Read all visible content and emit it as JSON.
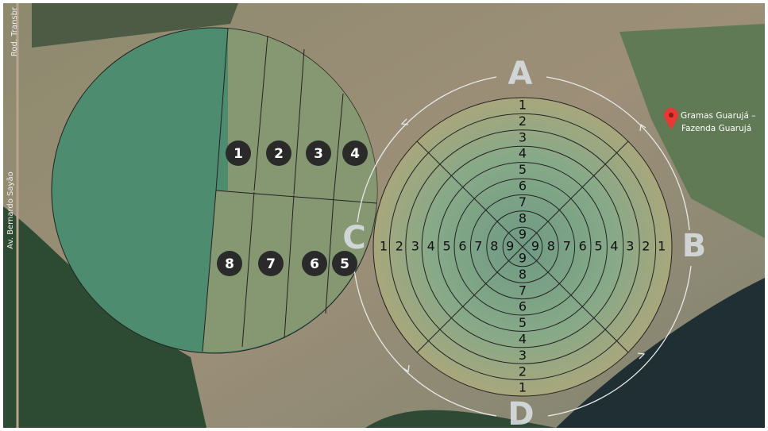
{
  "roads": [
    "Rod. Transbr",
    "Av. Bernardo Sayão"
  ],
  "place": {
    "name_lines": [
      "Gramas Guarujá –",
      "Fazenda Guarujá"
    ]
  },
  "directions": [
    "A",
    "B",
    "C",
    "D"
  ],
  "left_pivot": {
    "plots": [
      "1",
      "2",
      "3",
      "4",
      "5",
      "6",
      "7",
      "8"
    ]
  },
  "right_pivot": {
    "top": [
      "1",
      "2",
      "3",
      "4",
      "5",
      "6",
      "7",
      "8",
      "9"
    ],
    "bottom": [
      "9",
      "8",
      "7",
      "6",
      "5",
      "4",
      "3",
      "2",
      "1"
    ],
    "left": [
      "1",
      "2",
      "3",
      "4",
      "5",
      "6",
      "7",
      "8",
      "9"
    ],
    "right": [
      "9",
      "8",
      "7",
      "6",
      "5",
      "4",
      "3",
      "2",
      "1"
    ]
  }
}
